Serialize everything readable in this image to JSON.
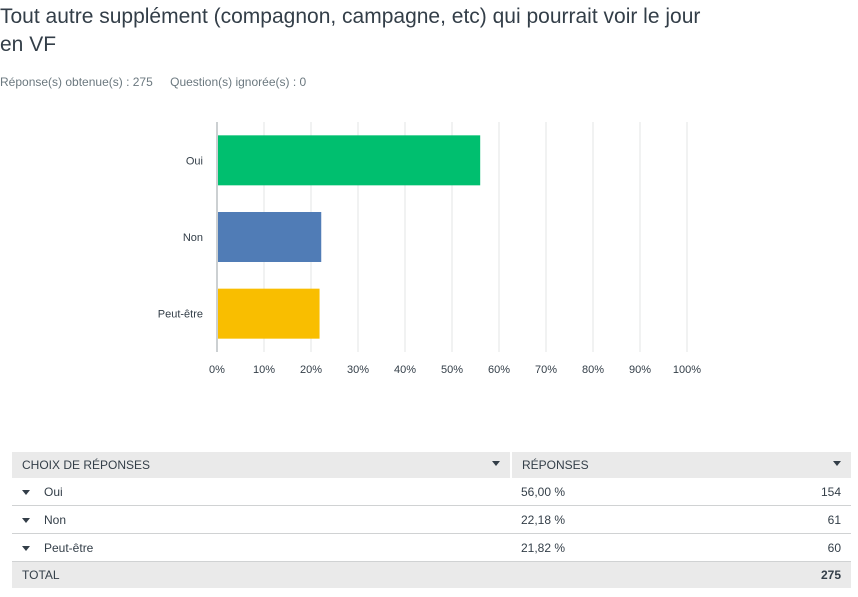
{
  "question": {
    "title_line1": "Tout autre supplément (compagnon, campagne, etc) qui pourrait voir le jour",
    "title_line2": "en VF",
    "answered_label": "Réponse(s) obtenue(s) : 275",
    "skipped_label": "Question(s) ignorée(s) : 0"
  },
  "chart_data": {
    "type": "bar",
    "orientation": "horizontal",
    "categories": [
      "Oui",
      "Non",
      "Peut-être"
    ],
    "values": [
      56.0,
      22.18,
      21.82
    ],
    "colors": [
      "#00bf6f",
      "#507cb6",
      "#f9be00"
    ],
    "xlim": [
      0,
      100
    ],
    "xticks": [
      "0%",
      "10%",
      "20%",
      "30%",
      "40%",
      "50%",
      "60%",
      "70%",
      "80%",
      "90%",
      "100%"
    ],
    "grid": true
  },
  "table": {
    "header_choice": "CHOIX DE RÉPONSES",
    "header_responses": "RÉPONSES",
    "rows": [
      {
        "choice": "Oui",
        "percent": "56,00 %",
        "count": "154"
      },
      {
        "choice": "Non",
        "percent": "22,18 %",
        "count": "61"
      },
      {
        "choice": "Peut-être",
        "percent": "21,82 %",
        "count": "60"
      }
    ],
    "total_label": "TOTAL",
    "total_value": "275"
  }
}
